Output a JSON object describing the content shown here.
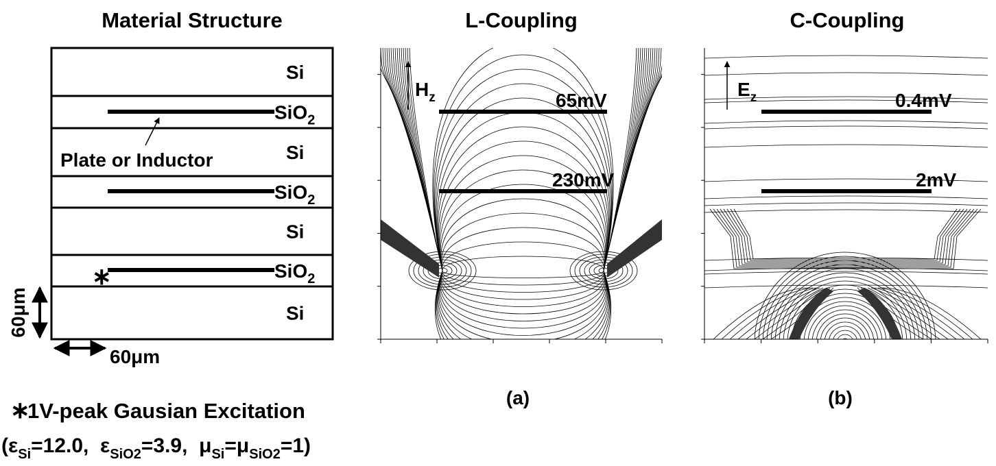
{
  "structure": {
    "title": "Material Structure",
    "layers": [
      {
        "base": "Si"
      },
      {
        "base": "SiO",
        "sub": "2"
      },
      {
        "base": "Si"
      },
      {
        "base": "SiO",
        "sub": "2"
      },
      {
        "base": "Si"
      },
      {
        "base": "SiO",
        "sub": "2"
      },
      {
        "base": "Si"
      }
    ],
    "plate_label": "Plate or Inductor",
    "source_marker": "∗",
    "scale_vertical": "60μm",
    "scale_horizontal": "60μm"
  },
  "l_coupling": {
    "title": "L-Coupling",
    "field": {
      "base": "H",
      "sub": "z"
    },
    "labels": [
      "65mV",
      "230mV"
    ],
    "caption": "(a)"
  },
  "c_coupling": {
    "title": "C-Coupling",
    "field": {
      "base": "E",
      "sub": "z"
    },
    "labels": [
      "0.4mV",
      "2mV"
    ],
    "caption": "(b)"
  },
  "notes": {
    "excitation": {
      "marker": "∗",
      "text": "1V-peak Gausian Excitation"
    },
    "parameters": [
      {
        "text": "(ε"
      },
      {
        "sub": "Si"
      },
      {
        "text": "=12.0,  ε"
      },
      {
        "sub": "SiO2"
      },
      {
        "text": "=3.9,  μ"
      },
      {
        "sub": "Si"
      },
      {
        "text": "=μ"
      },
      {
        "sub": "SiO2"
      },
      {
        "text": "=1)"
      }
    ]
  }
}
